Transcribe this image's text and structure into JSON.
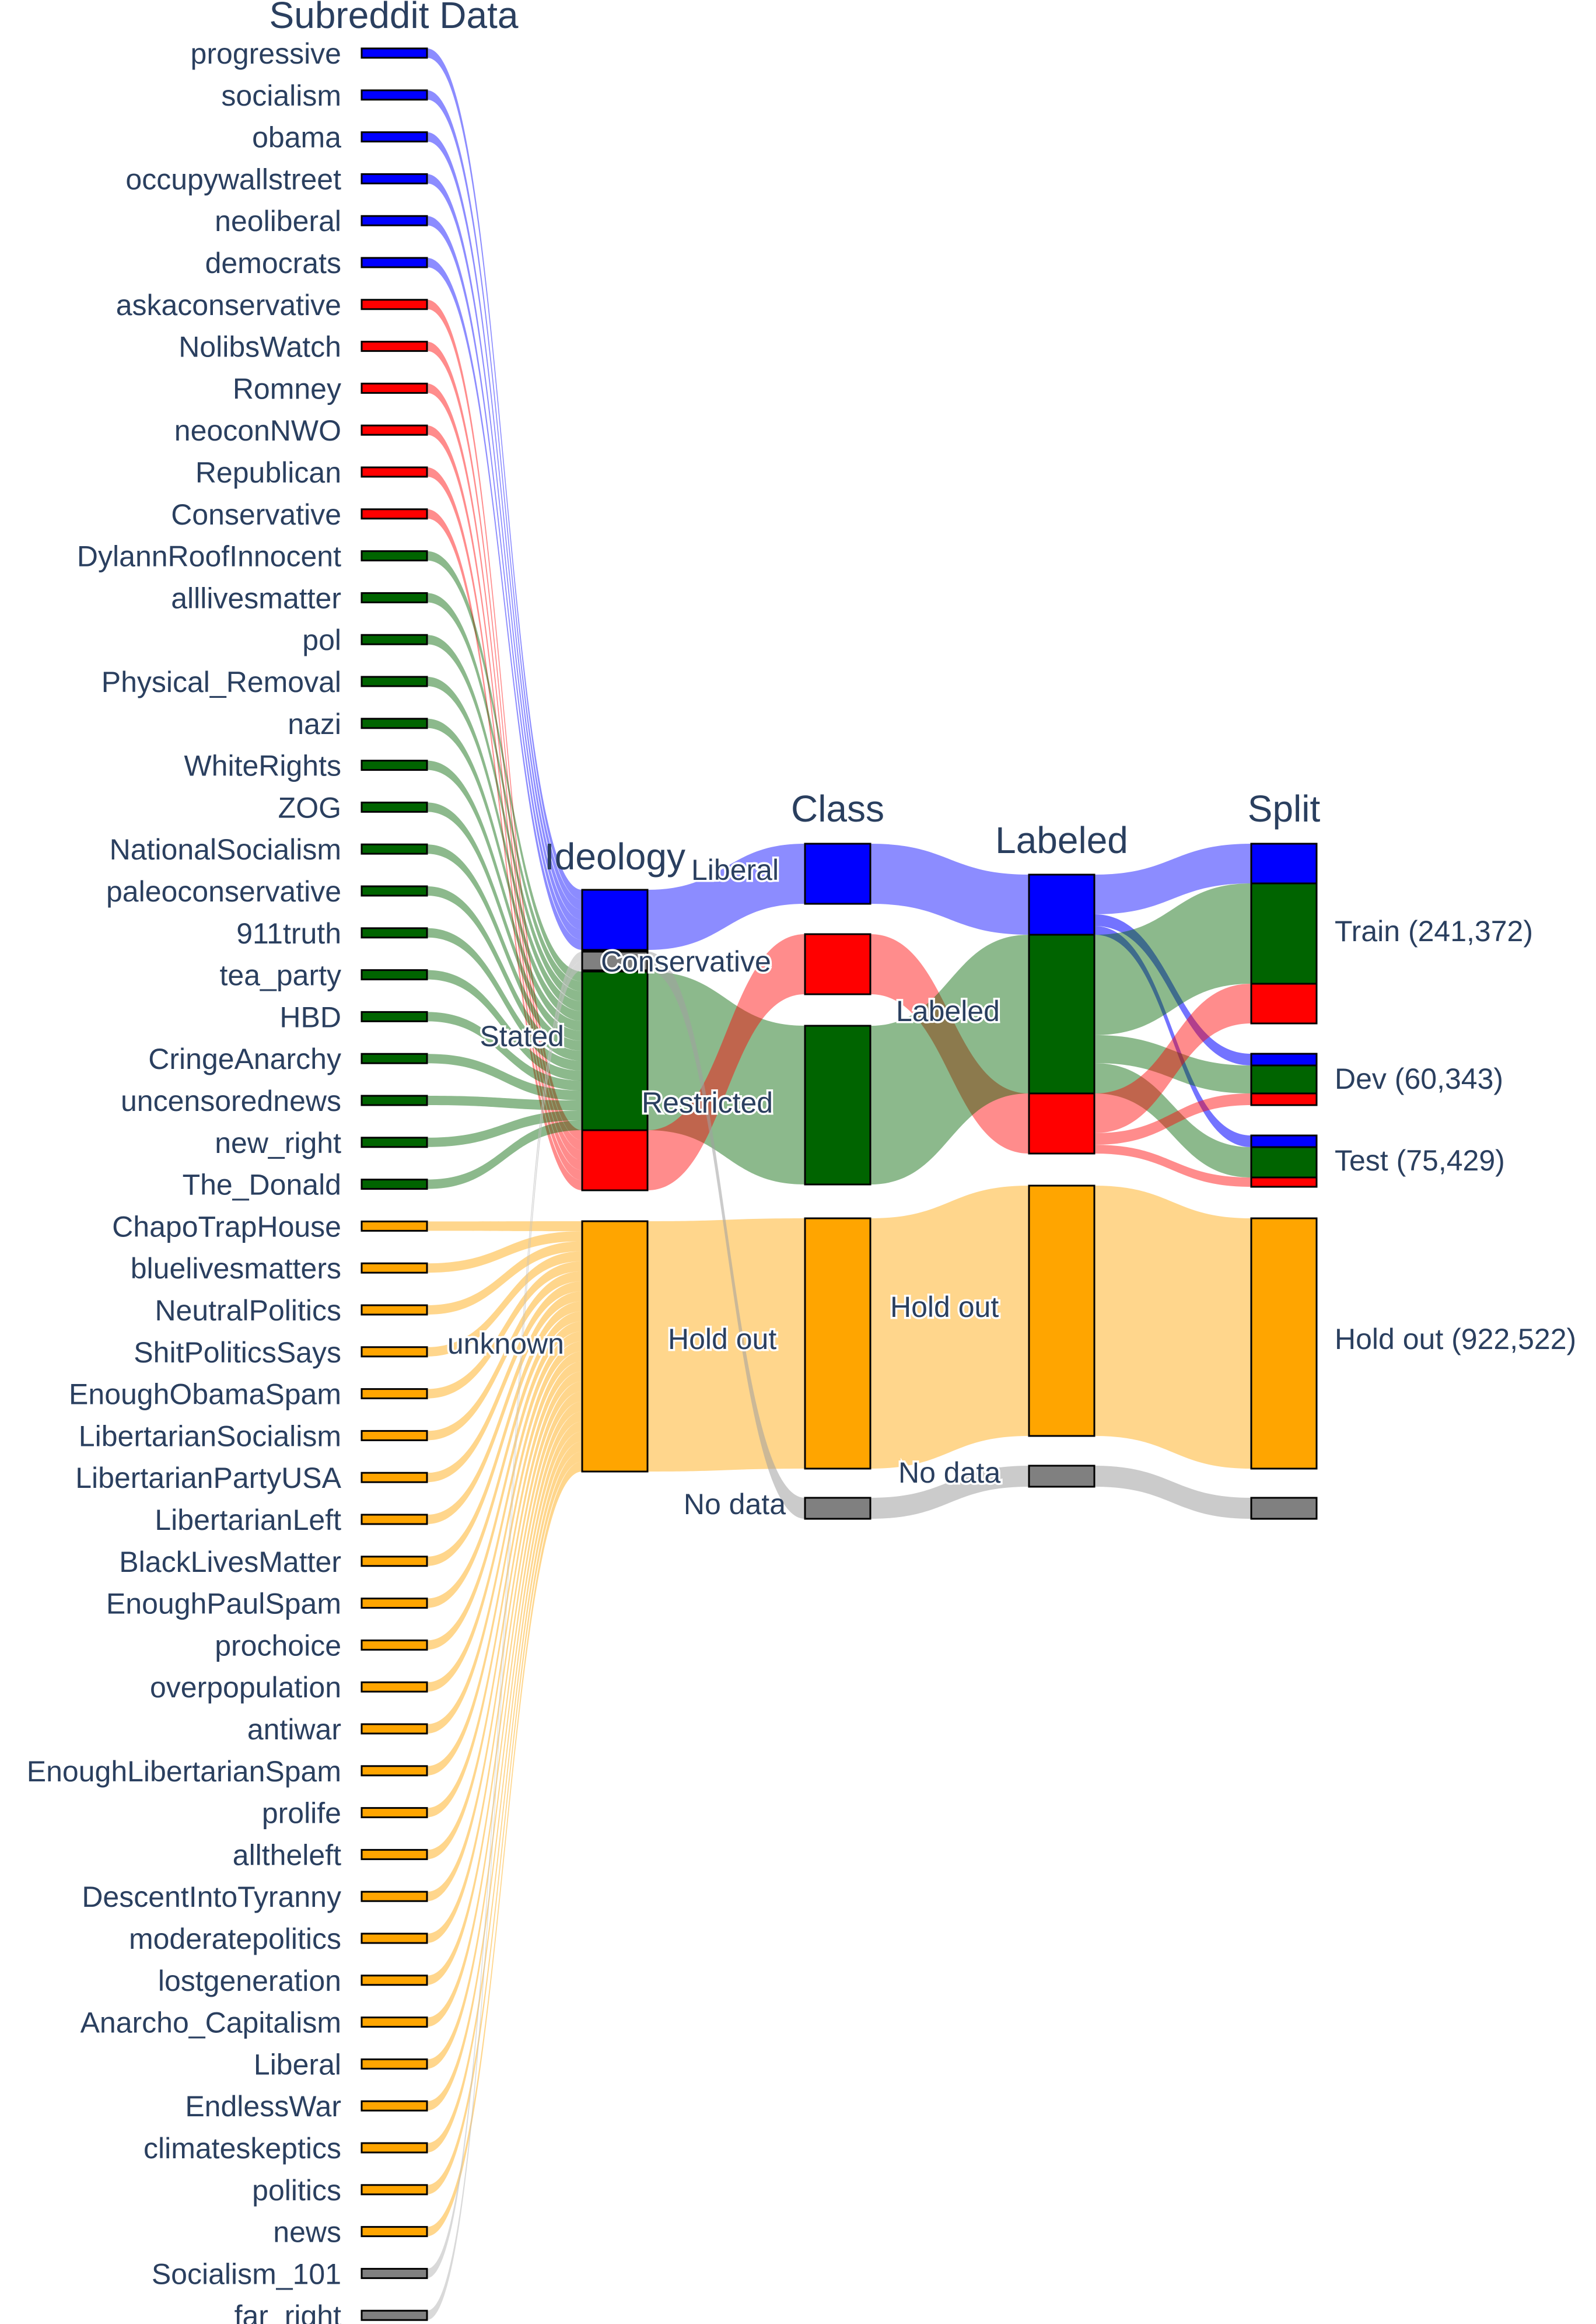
{
  "colors": {
    "liberal": "#0000ff",
    "conservative": "#ff0000",
    "restricted": "#006400",
    "holdout": "#ffa500",
    "nodata": "#808080",
    "text": "#2a3f5f"
  },
  "columns": {
    "subreddit": "Subreddit Data",
    "ideology": "Ideology",
    "class": "Class",
    "labeled": "Labeled",
    "split": "Split"
  },
  "subreddits": [
    {
      "name": "progressive",
      "group": "liberal"
    },
    {
      "name": "socialism",
      "group": "liberal"
    },
    {
      "name": "obama",
      "group": "liberal"
    },
    {
      "name": "occupywallstreet",
      "group": "liberal"
    },
    {
      "name": "neoliberal",
      "group": "liberal"
    },
    {
      "name": "democrats",
      "group": "liberal"
    },
    {
      "name": "askaconservative",
      "group": "conservative"
    },
    {
      "name": "NolibsWatch",
      "group": "conservative"
    },
    {
      "name": "Romney",
      "group": "conservative"
    },
    {
      "name": "neoconNWO",
      "group": "conservative"
    },
    {
      "name": "Republican",
      "group": "conservative"
    },
    {
      "name": "Conservative",
      "group": "conservative"
    },
    {
      "name": "DylannRoofInnocent",
      "group": "restricted"
    },
    {
      "name": "alllivesmatter",
      "group": "restricted"
    },
    {
      "name": "pol",
      "group": "restricted"
    },
    {
      "name": "Physical_Removal",
      "group": "restricted"
    },
    {
      "name": "nazi",
      "group": "restricted"
    },
    {
      "name": "WhiteRights",
      "group": "restricted"
    },
    {
      "name": "ZOG",
      "group": "restricted"
    },
    {
      "name": "NationalSocialism",
      "group": "restricted"
    },
    {
      "name": "paleoconservative",
      "group": "restricted"
    },
    {
      "name": "911truth",
      "group": "restricted"
    },
    {
      "name": "tea_party",
      "group": "restricted"
    },
    {
      "name": "HBD",
      "group": "restricted"
    },
    {
      "name": "CringeAnarchy",
      "group": "restricted"
    },
    {
      "name": "uncensorednews",
      "group": "restricted"
    },
    {
      "name": "new_right",
      "group": "restricted"
    },
    {
      "name": "The_Donald",
      "group": "restricted"
    },
    {
      "name": "ChapoTrapHouse",
      "group": "holdout"
    },
    {
      "name": "bluelivesmatters",
      "group": "holdout"
    },
    {
      "name": "NeutralPolitics",
      "group": "holdout"
    },
    {
      "name": "ShitPoliticsSays",
      "group": "holdout"
    },
    {
      "name": "EnoughObamaSpam",
      "group": "holdout"
    },
    {
      "name": "LibertarianSocialism",
      "group": "holdout"
    },
    {
      "name": "LibertarianPartyUSA",
      "group": "holdout"
    },
    {
      "name": "LibertarianLeft",
      "group": "holdout"
    },
    {
      "name": "BlackLivesMatter",
      "group": "holdout"
    },
    {
      "name": "EnoughPaulSpam",
      "group": "holdout"
    },
    {
      "name": "prochoice",
      "group": "holdout"
    },
    {
      "name": "overpopulation",
      "group": "holdout"
    },
    {
      "name": "antiwar",
      "group": "holdout"
    },
    {
      "name": "EnoughLibertarianSpam",
      "group": "holdout"
    },
    {
      "name": "prolife",
      "group": "holdout"
    },
    {
      "name": "alltheleft",
      "group": "holdout"
    },
    {
      "name": "DescentIntoTyranny",
      "group": "holdout"
    },
    {
      "name": "moderatepolitics",
      "group": "holdout"
    },
    {
      "name": "lostgeneration",
      "group": "holdout"
    },
    {
      "name": "Anarcho_Capitalism",
      "group": "holdout"
    },
    {
      "name": "Liberal",
      "group": "holdout"
    },
    {
      "name": "EndlessWar",
      "group": "holdout"
    },
    {
      "name": "climateskeptics",
      "group": "holdout"
    },
    {
      "name": "politics",
      "group": "holdout"
    },
    {
      "name": "news",
      "group": "holdout"
    },
    {
      "name": "Socialism_101",
      "group": "nodata"
    },
    {
      "name": "far_right",
      "group": "nodata"
    }
  ],
  "labels": {
    "stated": "Stated",
    "unknown": "unknown",
    "liberal": "Liberal",
    "conservative": "Conservative",
    "restricted": "Restricted",
    "hold_out": "Hold out",
    "no_data": "No data",
    "labeled": "Labeled",
    "labeled_hold_out": "Hold out",
    "labeled_no_data": "No data",
    "train": "Train (241,372)",
    "dev": "Dev (60,343)",
    "test": "Test (75,429)",
    "split_hold_out": "Hold out (922,522)"
  }
}
